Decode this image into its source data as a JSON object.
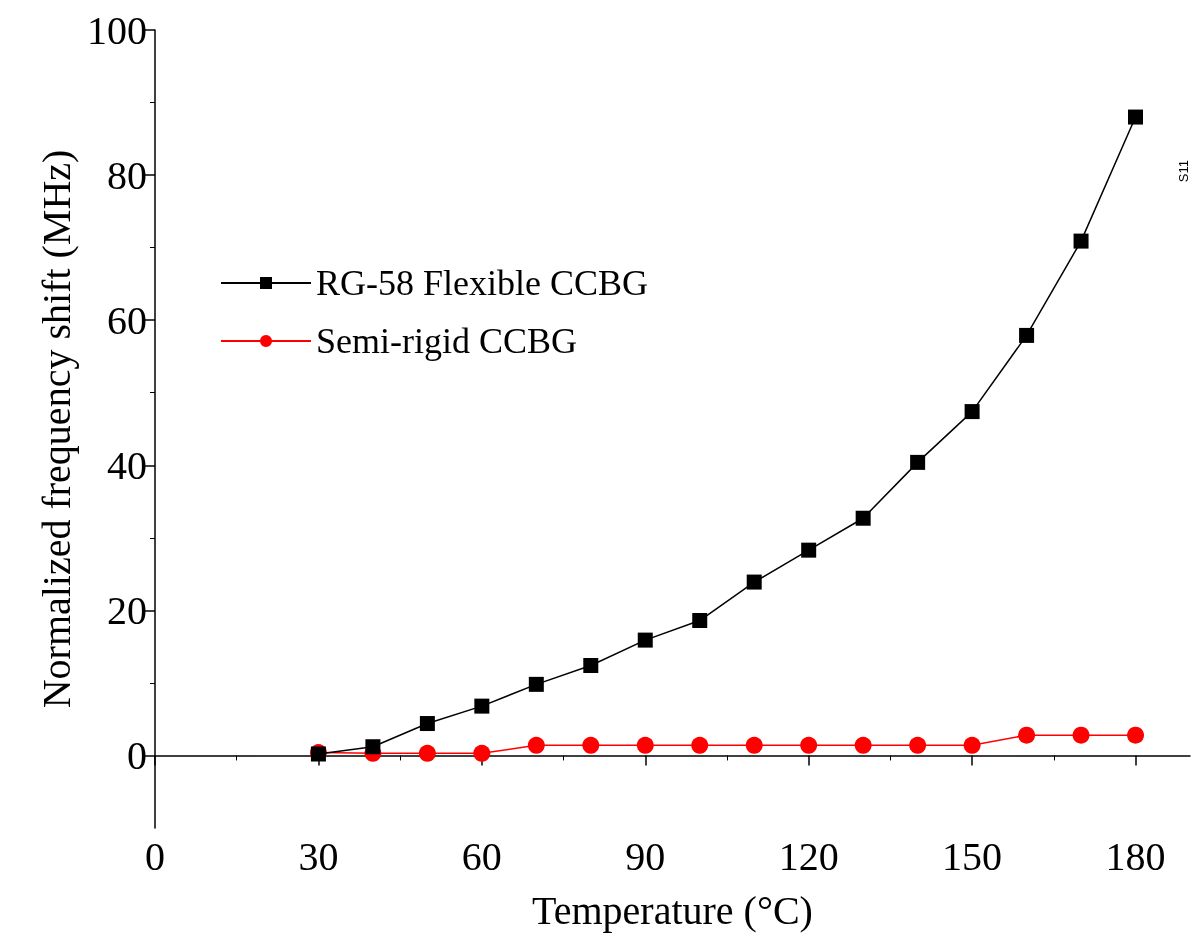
{
  "chart_data": {
    "type": "line",
    "xlabel": "Temperature (°C)",
    "ylabel": "Normalized frequency shift (MHz)",
    "x": [
      30,
      40,
      50,
      60,
      70,
      80,
      90,
      100,
      110,
      120,
      130,
      140,
      150,
      160,
      170,
      180
    ],
    "series": [
      {
        "name": "RG-58 Flexible CCBG",
        "color": "#000000",
        "marker": "square",
        "values": [
          0.2,
          1.2,
          4.4,
          6.8,
          9.8,
          12.4,
          15.9,
          18.6,
          23.9,
          28.3,
          32.7,
          40.4,
          47.4,
          57.9,
          70.9,
          88.0
        ]
      },
      {
        "name": "Semi-rigid CCBG",
        "color": "#ff0000",
        "marker": "circle",
        "values": [
          0.4,
          0.3,
          0.3,
          0.3,
          1.4,
          1.4,
          1.4,
          1.4,
          1.4,
          1.4,
          1.4,
          1.4,
          1.4,
          2.8,
          2.8,
          2.8
        ]
      }
    ],
    "xlim": [
      0,
      190
    ],
    "xticks": [
      0,
      30,
      60,
      90,
      120,
      150,
      180
    ],
    "ylim": [
      -10,
      100
    ],
    "yticks": [
      0,
      20,
      40,
      60,
      80,
      100
    ],
    "grid": false,
    "legend": "top left",
    "line_style": "solid",
    "annotations": [
      "S11"
    ]
  }
}
